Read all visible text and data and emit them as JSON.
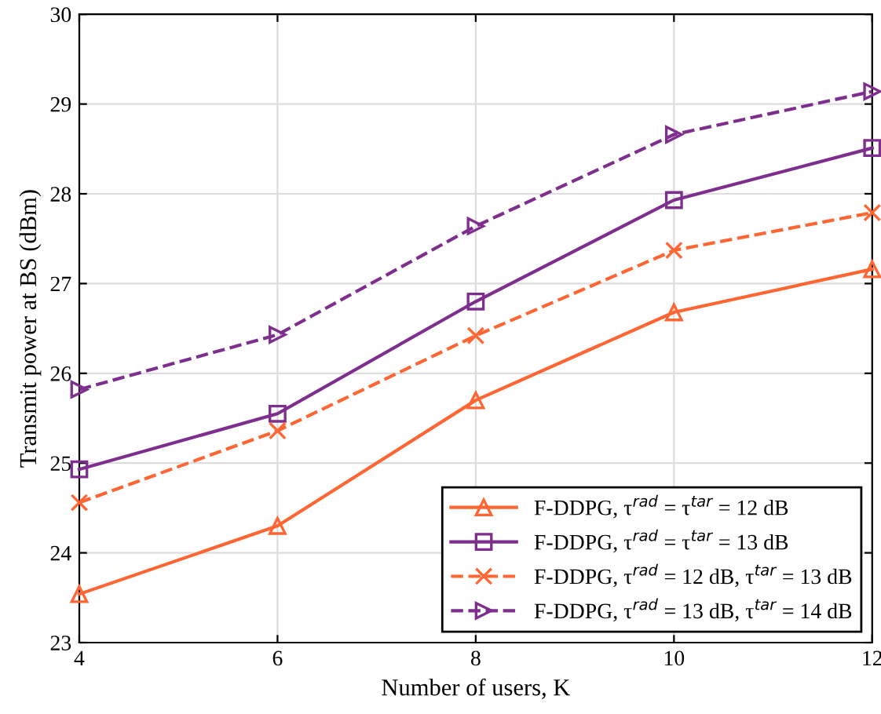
{
  "chart_data": {
    "type": "line",
    "xlabel": "Number of users, K",
    "ylabel": "Transmit power at BS (dBm)",
    "x": [
      4,
      6,
      8,
      10,
      12
    ],
    "series": [
      {
        "name": "F-DDPG, τ$^{rad}$ = τ$^{tar}$ = 12 dB",
        "color": "#ff6633",
        "marker": "triangle",
        "line_style": "solid",
        "values": [
          23.54,
          24.3,
          25.7,
          26.68,
          27.16
        ]
      },
      {
        "name": "F-DDPG, τ$^{rad}$ = τ$^{tar}$ = 13 dB",
        "color": "#7e2f8e",
        "marker": "square",
        "line_style": "solid",
        "values": [
          24.93,
          25.55,
          26.8,
          27.93,
          28.51
        ]
      },
      {
        "name": "F-DDPG, τ$^{rad}$ = 12 dB, τ$^{tar}$ = 13 dB",
        "color": "#ff6633",
        "marker": "cross",
        "line_style": "dashed",
        "values": [
          24.56,
          25.36,
          26.42,
          27.37,
          27.79
        ]
      },
      {
        "name": "F-DDPG, τ$^{rad}$ = 13 dB, τ$^{tar}$ = 14 dB",
        "color": "#7e2f8e",
        "marker": "triangle-right",
        "line_style": "dashed",
        "values": [
          25.82,
          26.43,
          27.64,
          28.66,
          29.14
        ]
      }
    ],
    "xlim": [
      4,
      12
    ],
    "xticks": [
      4,
      6,
      8,
      10,
      12
    ],
    "ylim": [
      23,
      30
    ],
    "yticks": [
      23,
      24,
      25,
      26,
      27,
      28,
      29,
      30
    ],
    "grid": true,
    "legend": "bottom right"
  }
}
